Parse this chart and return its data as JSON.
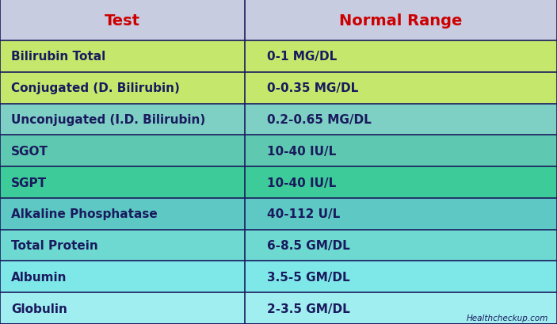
{
  "title_test": "Test",
  "title_range": "Normal Range",
  "header_bg": "#c8cce0",
  "header_text_color": "#cc0000",
  "header_fontsize": 14,
  "border_color": "#1a1a5e",
  "watermark": "Healthcheckup.com",
  "watermark_color": "#1a1a5e",
  "rows": [
    {
      "test": "Bilirubin Total",
      "range": "0-1 MG/DL",
      "bg": "#c5e86c"
    },
    {
      "test": "Conjugated (D. Bilirubin)",
      "range": "0-0.35 MG/DL",
      "bg": "#c5e86c"
    },
    {
      "test": "Unconjugated (I.D. Bilirubin)",
      "range": "0.2-0.65 MG/DL",
      "bg": "#7ecfc4"
    },
    {
      "test": "SGOT",
      "range": "10-40 IU/L",
      "bg": "#5ec9b0"
    },
    {
      "test": "SGPT",
      "range": "10-40 IU/L",
      "bg": "#3dcc99"
    },
    {
      "test": "Alkaline Phosphatase",
      "range": "40-112 U/L",
      "bg": "#5ec9c4"
    },
    {
      "test": "Total Protein",
      "range": "6-8.5 GM/DL",
      "bg": "#6dd9d0"
    },
    {
      "test": "Albumin",
      "range": "3.5-5 GM/DL",
      "bg": "#7ee8e8"
    },
    {
      "test": "Globulin",
      "range": "2-3.5 GM/DL",
      "bg": "#a0eef0"
    }
  ],
  "text_color": "#1a1a5e",
  "cell_fontsize": 11,
  "fig_width": 7.03,
  "fig_height": 4.1,
  "col_split": 0.44
}
